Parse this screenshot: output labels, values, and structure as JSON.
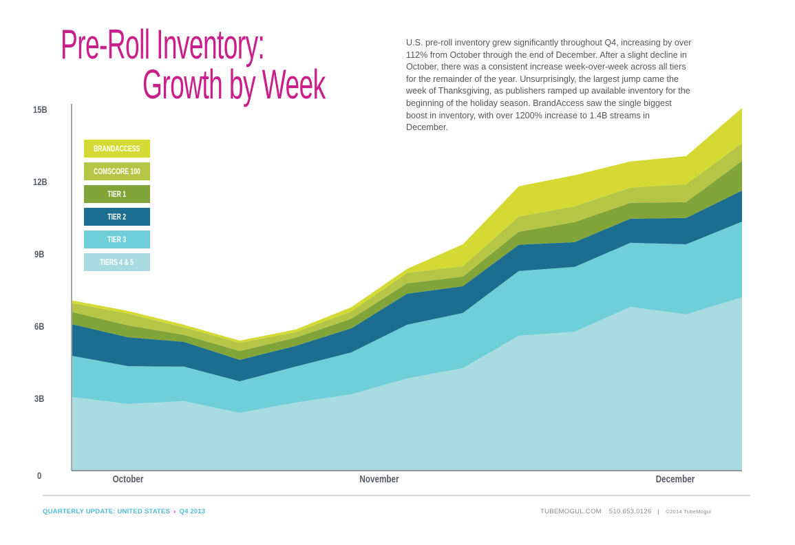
{
  "header": {
    "title_line1": "Pre-Roll Inventory:",
    "title_line2": "Growth by Week"
  },
  "description": {
    "lines": [
      "U.S. pre-roll inventory grew significantly throughout Q4, increasing by over",
      "112% from October through the end of December. After a slight decline in",
      "October, there was a consistent increase week-over-week across all tiers",
      "for the remainder of the year. Unsurprisingly, the largest jump came the",
      "week of Thanksgiving, as publishers ramped up available inventory for the",
      "beginning of the holiday season. BrandAccess saw the single biggest",
      "boost in inventory, with over 1200% increase to 1.4B streams in",
      "December."
    ]
  },
  "chart_data": {
    "type": "area",
    "stacked": true,
    "title": "Pre-Roll Inventory: Growth by Week",
    "xlabel": "",
    "ylabel": "",
    "ylim": [
      0,
      15
    ],
    "y_unit": "billions of streams",
    "y_ticks": [
      {
        "value": 0,
        "label": "0"
      },
      {
        "value": 3,
        "label": "3B"
      },
      {
        "value": 6,
        "label": "6B"
      },
      {
        "value": 9,
        "label": "9B"
      },
      {
        "value": 12,
        "label": "12B"
      },
      {
        "value": 15,
        "label": "15B"
      }
    ],
    "x": [
      1,
      2,
      3,
      4,
      5,
      6,
      7,
      8,
      9,
      10,
      11,
      12,
      13
    ],
    "x_month_labels": [
      {
        "label": "October",
        "at_week": 2
      },
      {
        "label": "November",
        "at_week": 6.5
      },
      {
        "label": "December",
        "at_week": 11.8
      }
    ],
    "grid": false,
    "legend_position": "top-left",
    "series": [
      {
        "name": "TIERS 4 & 5",
        "color": "#a8dce1",
        "values": [
          3.06,
          2.77,
          2.89,
          2.4,
          2.83,
          3.17,
          3.83,
          4.26,
          5.6,
          5.77,
          6.8,
          6.49,
          7.2
        ]
      },
      {
        "name": "TIER 3",
        "color": "#6fcfd8",
        "values": [
          1.71,
          1.57,
          1.43,
          1.31,
          1.49,
          1.74,
          2.23,
          2.29,
          2.69,
          2.69,
          2.66,
          2.91,
          3.14
        ]
      },
      {
        "name": "TIER 2",
        "color": "#1c6d8f",
        "values": [
          1.31,
          1.2,
          1.03,
          0.89,
          0.86,
          1.0,
          1.29,
          1.11,
          1.09,
          1.03,
          1.0,
          1.09,
          1.29
        ]
      },
      {
        "name": "TIER 1",
        "color": "#82a53a",
        "values": [
          0.51,
          0.49,
          0.29,
          0.37,
          0.34,
          0.4,
          0.43,
          0.4,
          0.54,
          0.83,
          0.66,
          0.66,
          1.23
        ]
      },
      {
        "name": "COMSCORE 100",
        "color": "#b5c646",
        "values": [
          0.37,
          0.49,
          0.31,
          0.34,
          0.23,
          0.31,
          0.43,
          0.43,
          0.63,
          0.66,
          0.63,
          0.74,
          0.74
        ]
      },
      {
        "name": "BRANDACCESS",
        "color": "#d4da33",
        "values": [
          0.11,
          0.11,
          0.11,
          0.09,
          0.11,
          0.17,
          0.17,
          0.91,
          1.26,
          1.29,
          1.09,
          1.17,
          1.46
        ]
      }
    ]
  },
  "legend": {
    "items": [
      {
        "label": "BRANDACCESS",
        "color": "#d4da33"
      },
      {
        "label": "COMSCORE 100",
        "color": "#b5c646"
      },
      {
        "label": "TIER 1",
        "color": "#82a53a"
      },
      {
        "label": "TIER 2",
        "color": "#1c6d8f"
      },
      {
        "label": "TIER 3",
        "color": "#6fcfd8"
      },
      {
        "label": "TIERS 4 & 5",
        "color": "#a8dce1"
      }
    ]
  },
  "footer": {
    "left": "QUARTERLY UPDATE: UNITED STATES",
    "separator": "›",
    "period": "Q4 2013",
    "site": "TUBEMOGUL.COM",
    "phone": "510.653.0126",
    "pipe": "|",
    "copyright": "©2014 TubeMogul"
  },
  "colors": {
    "title": "#c91f8a",
    "footer_left": "#4fbcd6",
    "footer_separator": "#e0338f"
  }
}
